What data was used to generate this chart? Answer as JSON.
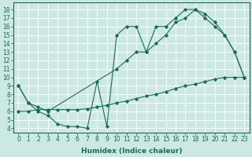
{
  "xlabel": "Humidex (Indice chaleur)",
  "background_color": "#cce8e4",
  "line_color": "#1a6b5a",
  "xlim": [
    -0.5,
    23.5
  ],
  "ylim": [
    3.5,
    18.8
  ],
  "xticks": [
    0,
    1,
    2,
    3,
    4,
    5,
    6,
    7,
    8,
    9,
    10,
    11,
    12,
    13,
    14,
    15,
    16,
    17,
    18,
    19,
    20,
    21,
    22,
    23
  ],
  "yticks": [
    4,
    5,
    6,
    7,
    8,
    9,
    10,
    11,
    12,
    13,
    14,
    15,
    16,
    17,
    18
  ],
  "line1_x": [
    0,
    1,
    2,
    3,
    4,
    5,
    6,
    7,
    8,
    9,
    10,
    11,
    12,
    13,
    14,
    15,
    16,
    17,
    18,
    19,
    20,
    21,
    22,
    23
  ],
  "line1_y": [
    9,
    7,
    6,
    5.5,
    4.5,
    4.2,
    4.2,
    4.0,
    9.5,
    4.2,
    15,
    16,
    16,
    13,
    16,
    16,
    17,
    18,
    18,
    17,
    16,
    15,
    13,
    10
  ],
  "line2_x": [
    0,
    1,
    2,
    3,
    10,
    11,
    12,
    13,
    14,
    15,
    16,
    17,
    18,
    19,
    20,
    21,
    22,
    23
  ],
  "line2_y": [
    9,
    7,
    6.5,
    6,
    11,
    12,
    13,
    13,
    14,
    15,
    16.5,
    17,
    18,
    17.5,
    16.5,
    15,
    13,
    10
  ],
  "line3_x": [
    0,
    1,
    2,
    3,
    4,
    5,
    6,
    7,
    8,
    9,
    10,
    11,
    12,
    13,
    14,
    15,
    16,
    17,
    18,
    19,
    20,
    21,
    22,
    23
  ],
  "line3_y": [
    6,
    6,
    6.2,
    6.2,
    6.2,
    6.2,
    6.2,
    6.3,
    6.5,
    6.7,
    7.0,
    7.2,
    7.5,
    7.8,
    8.0,
    8.3,
    8.7,
    9.0,
    9.2,
    9.5,
    9.8,
    10.0,
    10.0,
    10.0
  ],
  "tick_fontsize": 5.5,
  "xlabel_fontsize": 6.5
}
